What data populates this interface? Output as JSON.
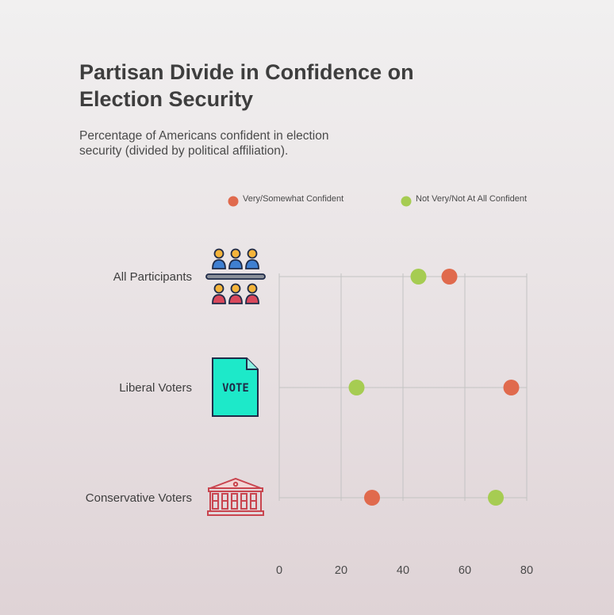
{
  "title": "Partisan Divide in Confidence on Election Security",
  "subtitle": "Percentage of Americans confident in election security (divided by political affiliation).",
  "colors": {
    "confident": "#e06a4d",
    "not_confident": "#a6cc52",
    "grid": "#c3c3c3"
  },
  "icons": [
    "people-group-icon",
    "vote-ballot-icon",
    "government-building-icon"
  ],
  "chart_data": {
    "type": "dot",
    "title": "Partisan Divide in Confidence on Election Security",
    "categories": [
      "All Participants",
      "Liberal Voters",
      "Conservative Voters"
    ],
    "series": [
      {
        "name": "Very/Somewhat Confident",
        "color": "#e06a4d",
        "values": [
          55,
          75,
          30
        ]
      },
      {
        "name": "Not Very/Not At All Confident",
        "color": "#a6cc52",
        "values": [
          45,
          25,
          70
        ]
      }
    ],
    "xlim": [
      0,
      80
    ],
    "xticks": [
      0,
      20,
      40,
      60,
      80
    ],
    "legend": "top",
    "grid": true
  }
}
